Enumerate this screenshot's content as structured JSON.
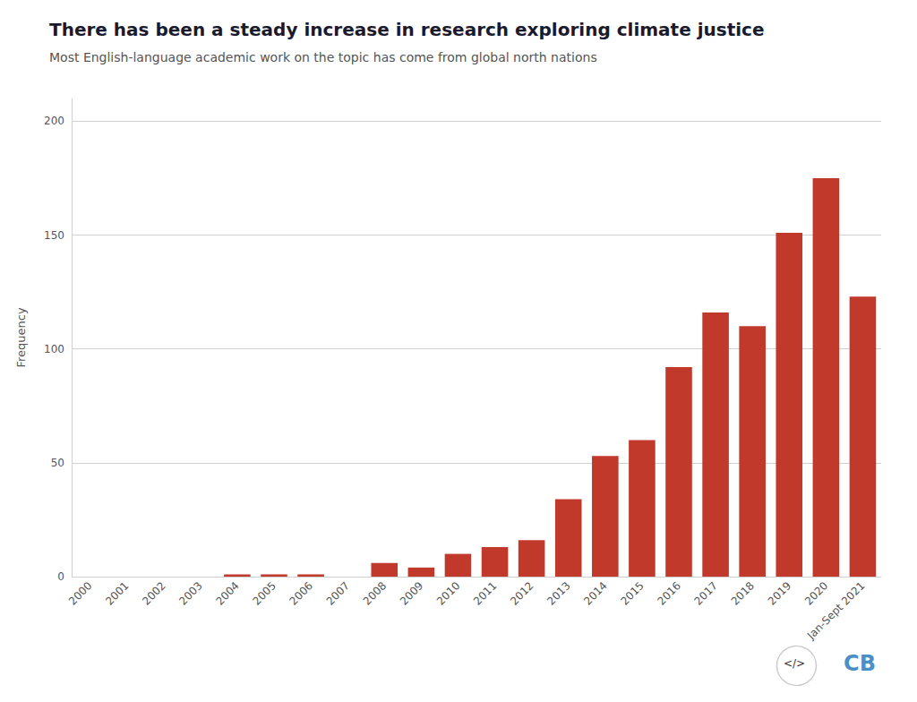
{
  "chart_data": {
    "type": "bar",
    "title": "There has been a steady increase in research exploring climate justice",
    "subtitle": "Most English-language academic work on the topic has come from global north nations",
    "ylabel": "Frequency",
    "categories": [
      "2000",
      "2001",
      "2002",
      "2003",
      "2004",
      "2005",
      "2006",
      "2007",
      "2008",
      "2009",
      "2010",
      "2011",
      "2012",
      "2013",
      "2014",
      "2015",
      "2016",
      "2017",
      "2018",
      "2019",
      "2020",
      "Jan-Sept 2021"
    ],
    "values": [
      0,
      0,
      0,
      0,
      1,
      1,
      1,
      0,
      6,
      4,
      10,
      13,
      16,
      34,
      53,
      60,
      92,
      116,
      110,
      151,
      175,
      123
    ],
    "color": "#c0392b",
    "ylim": [
      0,
      210
    ],
    "yticks": [
      0,
      50,
      100,
      150,
      200
    ],
    "grid": true,
    "annotations": [
      "</>",
      "CB"
    ]
  }
}
